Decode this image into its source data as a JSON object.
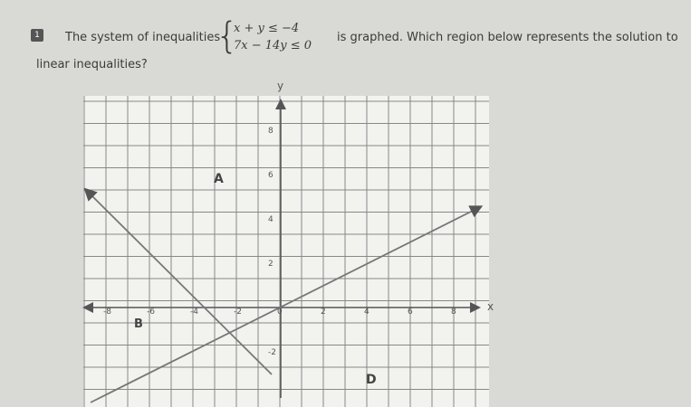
{
  "question": {
    "number": "1",
    "text_before": "The system of inequalities",
    "system": [
      "x + y ≤ −4",
      "7x − 14y ≤ 0"
    ],
    "text_after": "is graphed.  Which region below represents the solution to",
    "text_line2": "linear inequalities?"
  },
  "graph": {
    "x_axis_label": "x",
    "y_axis_label": "y",
    "x_ticks": [
      "-8",
      "-6",
      "-4",
      "-2",
      "0",
      "2",
      "4",
      "6",
      "8"
    ],
    "y_ticks": [
      "8",
      "6",
      "4",
      "2",
      "-2"
    ],
    "regions": [
      "A",
      "B",
      "D"
    ]
  }
}
